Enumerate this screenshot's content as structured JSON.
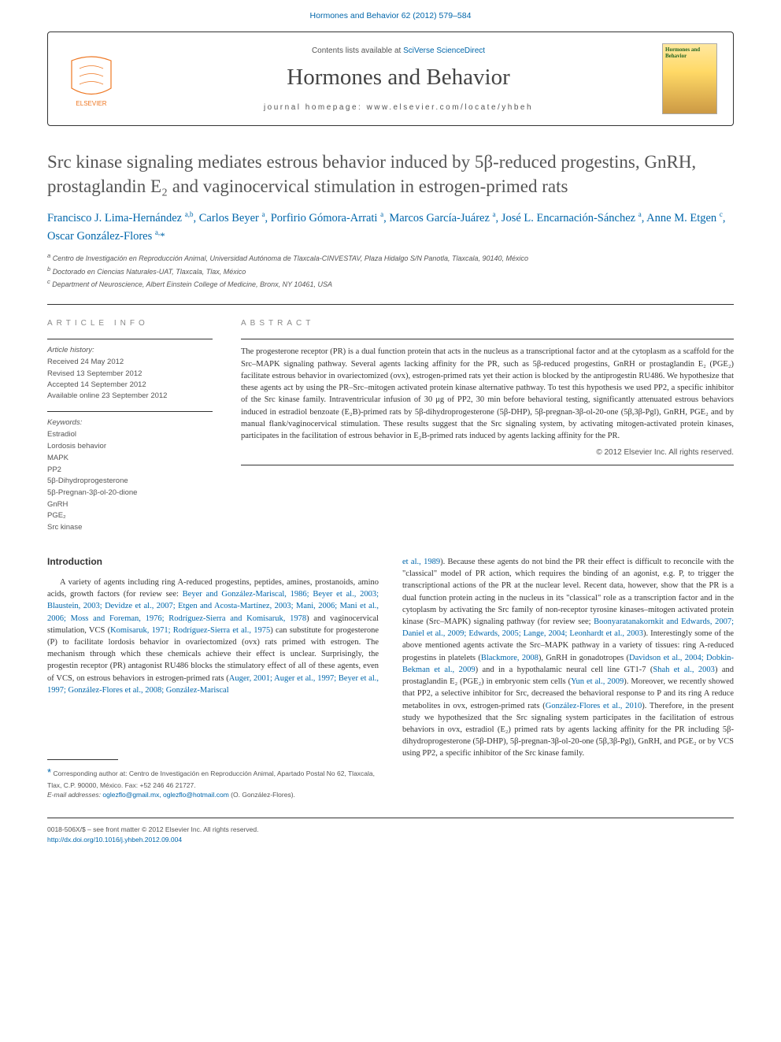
{
  "top_link": {
    "prefix": "Hormones and Behavior 62 (2012) 579–584"
  },
  "header": {
    "contents_prefix": "Contents lists available at ",
    "contents_link": "SciVerse ScienceDirect",
    "journal_name": "Hormones and Behavior",
    "homepage_prefix": "journal homepage: ",
    "homepage_url": "www.elsevier.com/locate/yhbeh",
    "cover_text": "Hormones and Behavior"
  },
  "title": "Src kinase signaling mediates estrous behavior induced by 5β-reduced progestins, GnRH, prostaglandin E₂ and vaginocervical stimulation in estrogen-primed rats",
  "authors_html": "Francisco J. Lima-Hernández <sup>a,b</sup>, Carlos Beyer <sup>a</sup>, Porfirio Gómora-Arrati <sup>a</sup>, Marcos García-Juárez <sup>a</sup>, José L. Encarnación-Sánchez <sup>a</sup>, Anne M. Etgen <sup>c</sup>, Oscar González-Flores <sup>a,</sup><span class=\"star\">*</span>",
  "affiliations": {
    "a": "Centro de Investigación en Reproducción Animal, Universidad Autónoma de Tlaxcala-CINVESTAV, Plaza Hidalgo S/N Panotla, Tlaxcala, 90140, México",
    "b": "Doctorado en Ciencias Naturales-UAT, Tlaxcala, Tlax, México",
    "c": "Department of Neuroscience, Albert Einstein College of Medicine, Bronx, NY 10461, USA"
  },
  "article_info": {
    "header": "ARTICLE INFO",
    "history_label": "Article history:",
    "history": "Received 24 May 2012\nRevised 13 September 2012\nAccepted 14 September 2012\nAvailable online 23 September 2012",
    "keywords_label": "Keywords:",
    "keywords": [
      "Estradiol",
      "Lordosis behavior",
      "MAPK",
      "PP2",
      "5β-Dihydroprogesterone",
      "5β-Pregnan-3β-ol-20-dione",
      "GnRH",
      "PGE₂",
      "Src kinase"
    ]
  },
  "abstract": {
    "header": "ABSTRACT",
    "text": "The progesterone receptor (PR) is a dual function protein that acts in the nucleus as a transcriptional factor and at the cytoplasm as a scaffold for the Src–MAPK signaling pathway. Several agents lacking affinity for the PR, such as 5β-reduced progestins, GnRH or prostaglandin E₂ (PGE₂) facilitate estrous behavior in ovariectomized (ovx), estrogen-primed rats yet their action is blocked by the antiprogestin RU486. We hypothesize that these agents act by using the PR–Src–mitogen activated protein kinase alternative pathway. To test this hypothesis we used PP2, a specific inhibitor of the Src kinase family. Intraventricular infusion of 30 μg of PP2, 30 min before behavioral testing, significantly attenuated estrous behaviors induced in estradiol benzoate (E₂B)-primed rats by 5β-dihydroprogesterone (5β-DHP), 5β-pregnan-3β-ol-20-one (5β,3β-Pgl), GnRH, PGE₂ and by manual flank/vaginocervical stimulation. These results suggest that the Src signaling system, by activating mitogen-activated protein kinases, participates in the facilitation of estrous behavior in E₂B-primed rats induced by agents lacking affinity for the PR.",
    "copyright": "© 2012 Elsevier Inc. All rights reserved."
  },
  "body": {
    "intro_heading": "Introduction",
    "col1_p1": "A variety of agents including ring A-reduced progestins, peptides, amines, prostanoids, amino acids, growth factors (for review see: <a href=\"#\" class=\"ref-link\">Beyer and González-Mariscal, 1986; Beyer et al., 2003; Blaustein, 2003; Devidze et al., 2007; Etgen and Acosta-Martínez, 2003; Mani, 2006; Mani et al., 2006; Moss and Foreman, 1976; Rodríguez-Sierra and Komisaruk, 1978</a>) and vaginocervical stimulation, VCS (<a href=\"#\" class=\"ref-link\">Komisaruk, 1971; Rodríguez-Sierra et al., 1975</a>) can substitute for progesterone (P) to facilitate lordosis behavior in ovariectomized (ovx) rats primed with estrogen. The mechanism through which these chemicals achieve their effect is unclear. Surprisingly, the progestin receptor (PR) antagonist RU486 blocks the stimulatory effect of all of these agents, even of VCS, on estrous behaviors in estrogen-primed rats (<a href=\"#\" class=\"ref-link\">Auger, 2001; Auger et al., 1997; Beyer et al., 1997; González-Flores et al., 2008; González-Mariscal</a>",
    "col2_p1": "<a href=\"#\" class=\"ref-link\">et al., 1989</a>). Because these agents do not bind the PR their effect is difficult to reconcile with the \"classical\" model of PR action, which requires the binding of an agonist, e.g. P, to trigger the transcriptional actions of the PR at the nuclear level. Recent data, however, show that the PR is a dual function protein acting in the nucleus in its \"classical\" role as a transcription factor and in the cytoplasm by activating the Src family of non-receptor tyrosine kinases–mitogen activated protein kinase (Src–MAPK) signaling pathway (for review see; <a href=\"#\" class=\"ref-link\">Boonyaratanakornkit and Edwards, 2007; Daniel et al., 2009; Edwards, 2005; Lange, 2004; Leonhardt et al., 2003</a>). Interestingly some of the above mentioned agents activate the Src–MAPK pathway in a variety of tissues: ring A-reduced progestins in platelets (<a href=\"#\" class=\"ref-link\">Blackmore, 2008</a>), GnRH in gonadotropes (<a href=\"#\" class=\"ref-link\">Davidson et al., 2004; Dobkin-Bekman et al., 2009</a>) and in a hypothalamic neural cell line GT1-7 (<a href=\"#\" class=\"ref-link\">Shah et al., 2003</a>) and prostaglandin E₂ (PGE₂) in embryonic stem cells (<a href=\"#\" class=\"ref-link\">Yun et al., 2009</a>). Moreover, we recently showed that PP2, a selective inhibitor for Src, decreased the behavioral response to P and its ring A reduce metabolites in ovx, estrogen-primed rats (<a href=\"#\" class=\"ref-link\">González-Flores et al., 2010</a>). Therefore, in the present study we hypothesized that the Src signaling system participates in the facilitation of estrous behaviors in ovx, estradiol (E₂) primed rats by agents lacking affinity for the PR including 5β-dihydroprogesterone (5β-DHP), 5β-pregnan-3β-ol-20-one (5β,3β-Pgl), GnRH, and PGE₂ or by VCS using PP2, a specific inhibitor of the Src kinase family."
  },
  "corresponding": {
    "star": "*",
    "text": "Corresponding author at: Centro de Investigación en Reproducción Animal, Apartado Postal No 62, Tlaxcala, Tlax, C.P. 90000, México. Fax: +52 246 46 21727.",
    "email_label": "E-mail addresses:",
    "emails": "oglezflo@gmail.mx, oglezflo@hotmail.com",
    "email_suffix": " (O. González-Flores)."
  },
  "footer": {
    "issn_line": "0018-506X/$ – see front matter © 2012 Elsevier Inc. All rights reserved.",
    "doi": "http://dx.doi.org/10.1016/j.yhbeh.2012.09.004"
  }
}
